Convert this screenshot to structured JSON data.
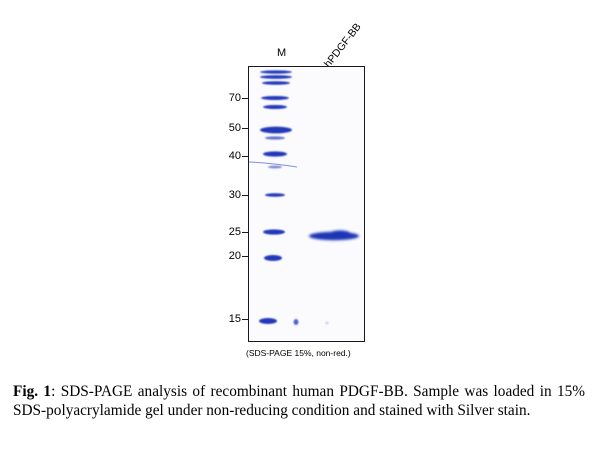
{
  "gel": {
    "lanes": {
      "marker": "M",
      "sample": "hPDGF-BB"
    },
    "mw_markers": [
      "70",
      "50",
      "40",
      "30",
      "25",
      "20",
      "15"
    ],
    "note": "(SDS-PAGE 15%, non-red.)",
    "band_color": "#1f35b5"
  },
  "caption": {
    "figure_number": "Fig. 1",
    "text": ": SDS-PAGE analysis of recombinant human PDGF-BB. Sample was loaded in 15% SDS-polyacrylamide gel under non-reducing condition and stained with Silver stain."
  }
}
